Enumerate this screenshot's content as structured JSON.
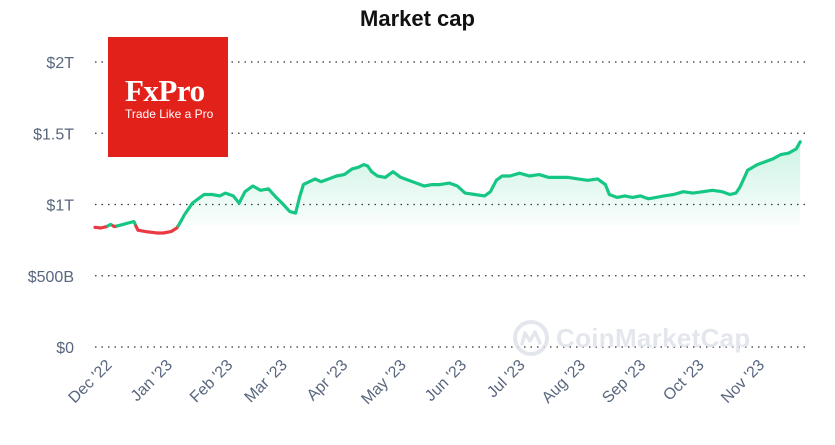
{
  "chart_data": {
    "type": "area",
    "title": "Market cap",
    "xlabel": "",
    "ylabel": "",
    "ylim": [
      0,
      2000000000000
    ],
    "y_ticks": [
      {
        "value": 2000000000000,
        "label": "$2T"
      },
      {
        "value": 1500000000000,
        "label": "$1.5T"
      },
      {
        "value": 1000000000000,
        "label": "$1T"
      },
      {
        "value": 500000000000,
        "label": "$500B"
      },
      {
        "value": 0,
        "label": "$0"
      }
    ],
    "x_ticks": [
      {
        "date": "2022-12-01",
        "label": "Dec '22"
      },
      {
        "date": "2023-01-01",
        "label": "Jan '23"
      },
      {
        "date": "2023-02-01",
        "label": "Feb '23"
      },
      {
        "date": "2023-03-01",
        "label": "Mar '23"
      },
      {
        "date": "2023-04-01",
        "label": "Apr '23"
      },
      {
        "date": "2023-05-01",
        "label": "May '23"
      },
      {
        "date": "2023-06-01",
        "label": "Jun '23"
      },
      {
        "date": "2023-07-01",
        "label": "Jul '23"
      },
      {
        "date": "2023-08-01",
        "label": "Aug '23"
      },
      {
        "date": "2023-09-01",
        "label": "Sep '23"
      },
      {
        "date": "2023-10-01",
        "label": "Oct '23"
      },
      {
        "date": "2023-11-01",
        "label": "Nov '23"
      }
    ],
    "x_range": [
      "2022-11-27",
      "2023-11-27"
    ],
    "baseline_value": 850000000000,
    "grid": true,
    "colors": {
      "above": "#16c784",
      "below": "#ea3943",
      "text": "#58667e"
    },
    "series": [
      {
        "x": [
          "2022-11-27",
          "2022-11-30",
          "2022-12-03",
          "2022-12-05",
          "2022-12-07",
          "2022-12-10",
          "2022-12-14",
          "2022-12-17",
          "2022-12-19",
          "2022-12-23",
          "2022-12-26",
          "2022-12-29",
          "2023-01-01",
          "2023-01-05",
          "2023-01-08",
          "2023-01-10",
          "2023-01-12",
          "2023-01-14",
          "2023-01-16",
          "2023-01-19",
          "2023-01-22",
          "2023-01-26",
          "2023-01-30",
          "2023-02-02",
          "2023-02-06",
          "2023-02-09",
          "2023-02-12",
          "2023-02-16",
          "2023-02-20",
          "2023-02-24",
          "2023-02-28",
          "2023-03-03",
          "2023-03-07",
          "2023-03-10",
          "2023-03-12",
          "2023-03-14",
          "2023-03-17",
          "2023-03-20",
          "2023-03-23",
          "2023-03-27",
          "2023-03-31",
          "2023-04-04",
          "2023-04-08",
          "2023-04-11",
          "2023-04-14",
          "2023-04-16",
          "2023-04-18",
          "2023-04-21",
          "2023-04-25",
          "2023-04-29",
          "2023-05-03",
          "2023-05-07",
          "2023-05-11",
          "2023-05-15",
          "2023-05-19",
          "2023-05-23",
          "2023-05-28",
          "2023-06-01",
          "2023-06-05",
          "2023-06-10",
          "2023-06-15",
          "2023-06-18",
          "2023-06-21",
          "2023-06-24",
          "2023-06-28",
          "2023-07-03",
          "2023-07-08",
          "2023-07-13",
          "2023-07-18",
          "2023-07-23",
          "2023-07-28",
          "2023-08-02",
          "2023-08-07",
          "2023-08-12",
          "2023-08-16",
          "2023-08-18",
          "2023-08-22",
          "2023-08-26",
          "2023-08-30",
          "2023-09-03",
          "2023-09-07",
          "2023-09-11",
          "2023-09-15",
          "2023-09-20",
          "2023-09-25",
          "2023-09-30",
          "2023-10-05",
          "2023-10-10",
          "2023-10-15",
          "2023-10-19",
          "2023-10-22",
          "2023-10-24",
          "2023-10-28",
          "2023-11-02",
          "2023-11-06",
          "2023-11-10",
          "2023-11-14",
          "2023-11-18",
          "2023-11-22",
          "2023-11-24"
        ],
        "values": [
          840000000000,
          835000000000,
          845000000000,
          860000000000,
          845000000000,
          855000000000,
          870000000000,
          880000000000,
          820000000000,
          810000000000,
          805000000000,
          800000000000,
          800000000000,
          810000000000,
          835000000000,
          880000000000,
          930000000000,
          970000000000,
          1010000000000,
          1040000000000,
          1070000000000,
          1070000000000,
          1060000000000,
          1080000000000,
          1060000000000,
          1010000000000,
          1090000000000,
          1130000000000,
          1100000000000,
          1110000000000,
          1050000000000,
          1010000000000,
          950000000000,
          940000000000,
          1050000000000,
          1140000000000,
          1160000000000,
          1180000000000,
          1160000000000,
          1180000000000,
          1200000000000,
          1210000000000,
          1250000000000,
          1260000000000,
          1280000000000,
          1270000000000,
          1230000000000,
          1200000000000,
          1190000000000,
          1230000000000,
          1190000000000,
          1170000000000,
          1150000000000,
          1130000000000,
          1140000000000,
          1140000000000,
          1150000000000,
          1130000000000,
          1080000000000,
          1070000000000,
          1060000000000,
          1090000000000,
          1170000000000,
          1200000000000,
          1200000000000,
          1220000000000,
          1200000000000,
          1210000000000,
          1190000000000,
          1190000000000,
          1190000000000,
          1180000000000,
          1170000000000,
          1180000000000,
          1140000000000,
          1070000000000,
          1050000000000,
          1060000000000,
          1050000000000,
          1060000000000,
          1040000000000,
          1050000000000,
          1060000000000,
          1070000000000,
          1090000000000,
          1080000000000,
          1090000000000,
          1100000000000,
          1090000000000,
          1070000000000,
          1080000000000,
          1120000000000,
          1240000000000,
          1280000000000,
          1300000000000,
          1320000000000,
          1350000000000,
          1360000000000,
          1390000000000,
          1440000000000
        ]
      }
    ]
  },
  "logo": {
    "name": "FxPro",
    "tagline": "Trade Like a Pro"
  },
  "watermark": {
    "text": "CoinMarketCap",
    "icon": "coinmarketcap-logo-icon"
  }
}
